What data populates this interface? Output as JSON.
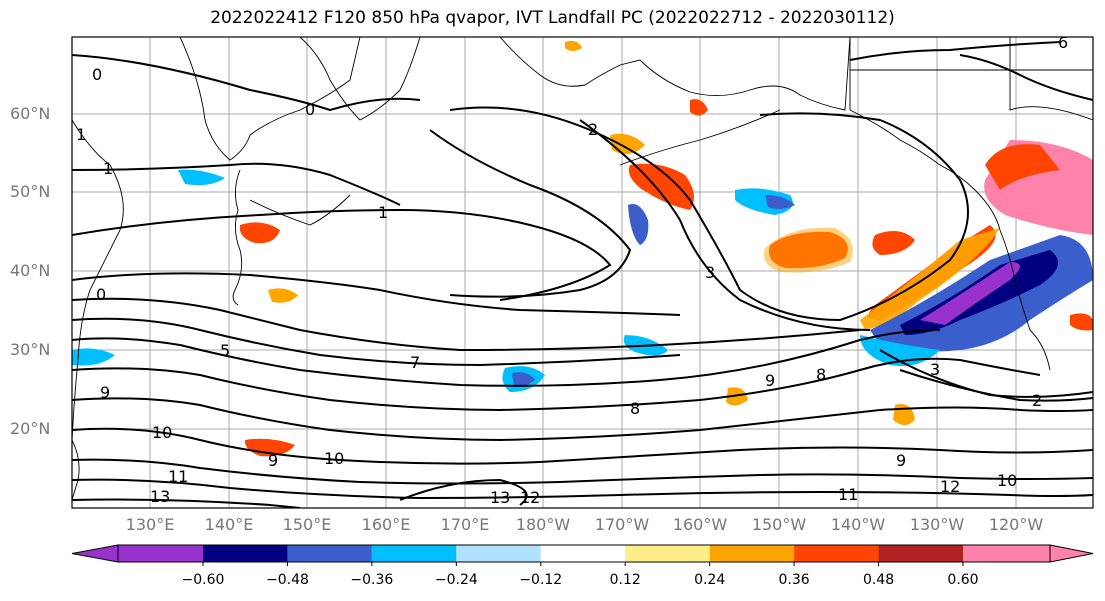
{
  "title": "2022022412 F120 850 hPa qvapor, IVT Landfall PC (2022022712 - 2022030112)",
  "map": {
    "lat_labels": [
      "60°N",
      "50°N",
      "40°N",
      "30°N",
      "20°N"
    ],
    "lon_labels": [
      "130°E",
      "140°E",
      "150°E",
      "160°E",
      "170°E",
      "180°W",
      "170°W",
      "160°W",
      "150°W",
      "140°W",
      "130°W",
      "120°W"
    ],
    "contour_labels": [
      "0",
      "0",
      "1",
      "1",
      "2",
      "3",
      "1",
      "0",
      "5",
      "9",
      "10",
      "11",
      "13",
      "10",
      "9",
      "7",
      "8",
      "9",
      "8",
      "12",
      "13",
      "11",
      "12",
      "10",
      "9",
      "2",
      "3",
      "6"
    ],
    "colors": {
      "land_outline": "#000000",
      "grid": "#aaaaaa",
      "contour": "#000000"
    }
  },
  "colorbar": {
    "ticks": [
      "−0.60",
      "−0.48",
      "−0.36",
      "−0.24",
      "−0.12",
      "0.12",
      "0.24",
      "0.36",
      "0.48",
      "0.60"
    ],
    "colors": [
      "#9932cc",
      "#000080",
      "#3a5fcd",
      "#00bfff",
      "#b0e2ff",
      "#ffffff",
      "#ffec8b",
      "#ffa500",
      "#ff4500",
      "#b22222",
      "#ff82ab"
    ]
  }
}
